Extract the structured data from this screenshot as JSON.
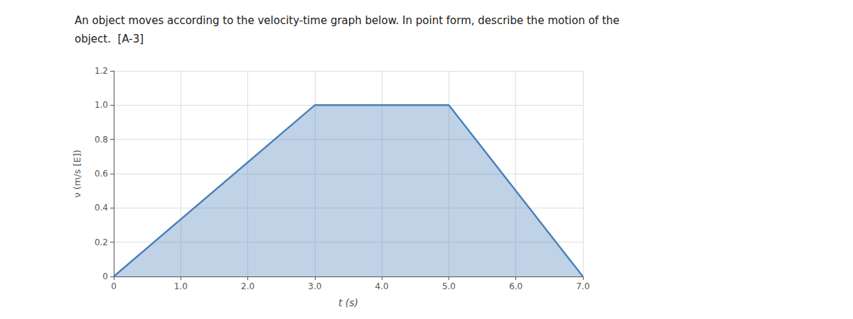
{
  "chart_data": {
    "type": "area",
    "title": "An object moves according to the velocity-time graph below. In point form, describe the motion of the",
    "subtitle": "object.  [A-3]",
    "xlabel": "t (s)",
    "ylabel": "ν (m/s [E])",
    "x": [
      0,
      3.0,
      5.0,
      7.0
    ],
    "values": [
      0,
      1.0,
      1.0,
      0
    ],
    "color": "#4a82b8",
    "xlim": [
      0,
      7.0
    ],
    "ylim": [
      0,
      1.2
    ],
    "xticks": [
      0,
      {
        "value": 1.0,
        "label": "1.0"
      },
      {
        "value": 2.0,
        "label": "2.0"
      },
      {
        "value": 3.0,
        "label": "3.0"
      },
      {
        "value": 4.0,
        "label": "4.0"
      },
      {
        "value": 5.0,
        "label": "5.0"
      },
      {
        "value": 6.0,
        "label": "6.0"
      },
      {
        "value": 7.0,
        "label": "7.0"
      }
    ],
    "yticks": [
      0,
      0.2,
      0.4,
      0.6,
      0.8,
      {
        "value": 1.0,
        "label": "1.0"
      },
      1.2
    ],
    "grid": true
  }
}
